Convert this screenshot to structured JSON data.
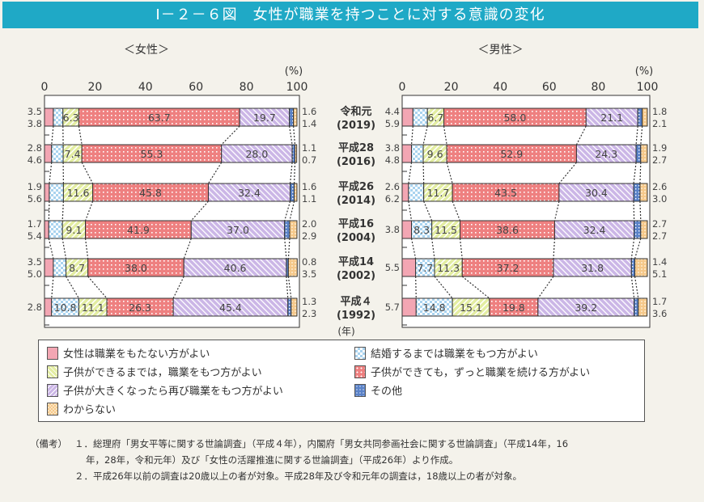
{
  "title": "Ⅰ－２－６図　女性が職業を持つことに対する意識の変化",
  "chart_data": [
    {
      "type": "bar",
      "orientation": "horizontal-stacked",
      "title": "＜女性＞",
      "unit": "(%)",
      "xlim": [
        0,
        100
      ],
      "ticks": [
        "0",
        "20",
        "40",
        "60",
        "80",
        "100"
      ],
      "categories": [
        [
          "令和元",
          "(2019)"
        ],
        [
          "平成28",
          "(2016)"
        ],
        [
          "平成26",
          "(2014)"
        ],
        [
          "平成16",
          "(2004)"
        ],
        [
          "平成14",
          "(2002)"
        ],
        [
          "平成４",
          "(1992)"
        ]
      ],
      "ylabel": "(年)",
      "series": [
        {
          "name": "女性は職業をもたない方がよい",
          "values": [
            3.5,
            2.8,
            1.9,
            1.7,
            3.5,
            2.8
          ]
        },
        {
          "name": "結婚するまでは職業をもつ方がよい",
          "values": [
            3.8,
            4.6,
            5.6,
            5.4,
            5.0,
            10.8
          ]
        },
        {
          "name": "子供ができるまでは，職業をもつ方がよい",
          "values": [
            6.3,
            7.4,
            11.6,
            9.1,
            8.7,
            11.1
          ]
        },
        {
          "name": "子供ができても，ずっと職業を続ける方がよい",
          "values": [
            63.7,
            55.3,
            45.8,
            41.9,
            38.0,
            26.3
          ]
        },
        {
          "name": "子供が大きくなったら再び職業をもつ方がよい",
          "values": [
            19.7,
            28.0,
            32.4,
            37.0,
            40.6,
            45.4
          ]
        },
        {
          "name": "その他",
          "values": [
            1.6,
            1.1,
            1.6,
            2.0,
            0.8,
            1.3
          ]
        },
        {
          "name": "わからない",
          "values": [
            1.4,
            0.7,
            1.1,
            2.9,
            3.5,
            2.3
          ]
        }
      ]
    },
    {
      "type": "bar",
      "orientation": "horizontal-stacked",
      "title": "＜男性＞",
      "unit": "(%)",
      "xlim": [
        0,
        100
      ],
      "ticks": [
        "0",
        "20",
        "40",
        "60",
        "80",
        "100"
      ],
      "categories": [
        [
          "令和元",
          "(2019)"
        ],
        [
          "平成28",
          "(2016)"
        ],
        [
          "平成26",
          "(2014)"
        ],
        [
          "平成16",
          "(2004)"
        ],
        [
          "平成14",
          "(2002)"
        ],
        [
          "平成４",
          "(1992)"
        ]
      ],
      "series": [
        {
          "name": "女性は職業をもたない方がよい",
          "values": [
            4.4,
            3.8,
            2.6,
            3.8,
            5.5,
            5.7
          ]
        },
        {
          "name": "結婚するまでは職業をもつ方がよい",
          "values": [
            5.9,
            4.8,
            6.2,
            8.3,
            7.7,
            14.8
          ]
        },
        {
          "name": "子供ができるまでは，職業をもつ方がよい",
          "values": [
            6.7,
            9.6,
            11.7,
            11.5,
            11.3,
            15.1
          ]
        },
        {
          "name": "子供ができても，ずっと職業を続ける方がよい",
          "values": [
            58.0,
            52.9,
            43.5,
            38.6,
            37.2,
            19.8
          ]
        },
        {
          "name": "子供が大きくなったら再び職業をもつ方がよい",
          "values": [
            21.1,
            24.3,
            30.4,
            32.4,
            31.8,
            39.2
          ]
        },
        {
          "name": "その他",
          "values": [
            1.8,
            1.9,
            2.6,
            2.7,
            1.4,
            1.7
          ]
        },
        {
          "name": "わからない",
          "values": [
            2.1,
            2.7,
            3.0,
            2.7,
            5.1,
            3.6
          ]
        }
      ]
    }
  ],
  "colors": [
    "#f3a6b3",
    "#a9d3ef",
    "#e3eda2",
    "#ee8080",
    "#cbb6e6",
    "#5a82c8",
    "#f5c88a"
  ],
  "legend": [
    "女性は職業をもたない方がよい",
    "結婚するまでは職業をもつ方がよい",
    "子供ができるまでは，職業をもつ方がよい",
    "子供ができても，ずっと職業を続ける方がよい",
    "子供が大きくなったら再び職業をもつ方がよい",
    "その他",
    "わからない"
  ],
  "notes": {
    "label": "（備考）",
    "n1a": "１．総理府「男女平等に関する世論調査」（平成４年），内閣府「男女共同参画社会に関する世論調査」（平成14年，16",
    "n1b": "年，28年，令和元年）及び「女性の活躍推進に関する世論調査」（平成26年）より作成。",
    "n2": "２．平成26年以前の調査は20歳以上の者が対象。平成28年及び令和元年の調査は，18歳以上の者が対象。"
  }
}
